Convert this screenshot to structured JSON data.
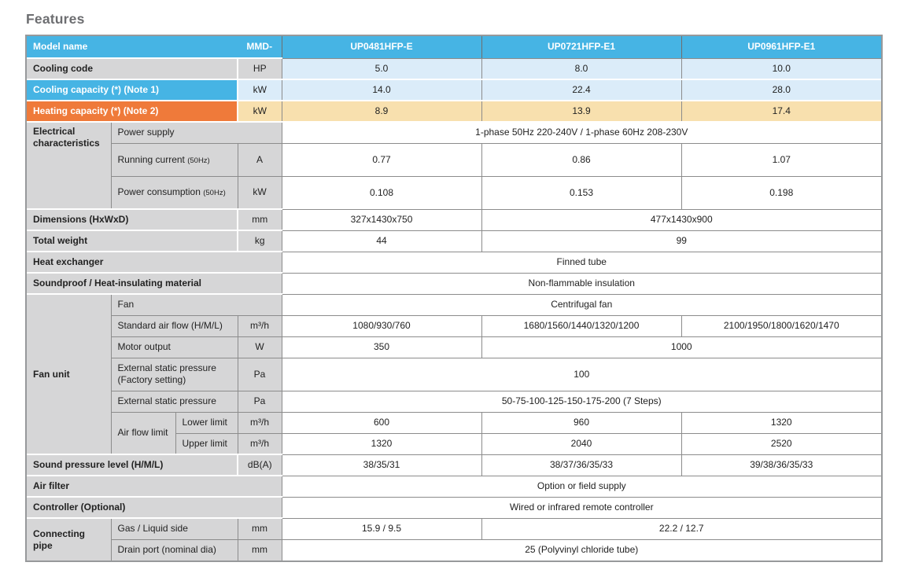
{
  "title": "Features",
  "colors": {
    "header-blue": "#46b4e4",
    "light-blue": "#dbecf9",
    "orange": "#ef7a3a",
    "light-tan": "#f8e0ae",
    "label-gray": "#d6d6d7",
    "line": "#8c8c8c",
    "dark-line": "#6e6e6e",
    "outer": "#97999b",
    "text": "#222222",
    "title-gray": "#6d6e71"
  },
  "table": {
    "rows": [
      {
        "hdr": true,
        "cells": [
          {
            "text": "Model name",
            "colspan": 3,
            "cls": "c-hdr left noR wB",
            "name": "header-model-name"
          },
          {
            "text": "MMD-",
            "cls": "c-hdr wB",
            "name": "header-mmd-prefix"
          },
          {
            "text": "UP0481HFP-E",
            "cls": "c-hdr",
            "name": "header-model-1"
          },
          {
            "text": "UP0721HFP-E1",
            "cls": "c-hdr",
            "name": "header-model-2"
          },
          {
            "text": "UP0961HFP-E1",
            "cls": "c-hdr",
            "name": "header-model-3"
          }
        ]
      },
      {
        "cells": [
          {
            "text": "Cooling code",
            "colspan": 3,
            "cls": "c-lbl wR",
            "name": "row-label-cooling-code"
          },
          {
            "text": "HP",
            "cls": "c-unit",
            "name": "unit-cell"
          },
          {
            "text": "5.0",
            "cls": "c-valb",
            "name": "value-cell"
          },
          {
            "text": "8.0",
            "cls": "c-valb",
            "name": "value-cell"
          },
          {
            "text": "10.0",
            "cls": "c-valb",
            "name": "value-cell"
          }
        ]
      },
      {
        "cells": [
          {
            "text": "Cooling capacity (*) (Note 1)",
            "colspan": 3,
            "cls": "c-capb wR",
            "name": "row-label-cooling-capacity"
          },
          {
            "text": "kW",
            "cls": "c-unitb",
            "name": "unit-cell"
          },
          {
            "text": "14.0",
            "cls": "c-valb",
            "name": "value-cell"
          },
          {
            "text": "22.4",
            "cls": "c-valb",
            "name": "value-cell"
          },
          {
            "text": "28.0",
            "cls": "c-valb",
            "name": "value-cell"
          }
        ]
      },
      {
        "cells": [
          {
            "text": "Heating capacity (*) (Note 2)",
            "colspan": 3,
            "cls": "c-capo wR",
            "name": "row-label-heating-capacity"
          },
          {
            "text": "kW",
            "cls": "c-unitt",
            "name": "unit-cell"
          },
          {
            "text": "8.9",
            "cls": "c-valt",
            "name": "value-cell"
          },
          {
            "text": "13.9",
            "cls": "c-valt",
            "name": "value-cell"
          },
          {
            "text": "17.4",
            "cls": "c-valt",
            "name": "value-cell"
          }
        ]
      },
      {
        "cells": [
          {
            "text": "Electrical characteristics",
            "rowspan": 3,
            "cls": "c-lbl vtop",
            "name": "row-label-electrical-characteristics"
          },
          {
            "text": "Power supply",
            "colspan": 3,
            "cls": "c-lblr gB",
            "name": "row-label-power-supply"
          },
          {
            "text": "1-phase 50Hz 220-240V / 1-phase 60Hz 208-230V",
            "colspan": 3,
            "cls": "c-val",
            "name": "value-cell"
          }
        ]
      },
      {
        "tall": true,
        "cells": [
          {
            "parts": [
              {
                "t": "Running current "
              },
              {
                "t": "(50Hz)",
                "s": "sm"
              }
            ],
            "colspan": 2,
            "cls": "c-lblr gB",
            "name": "row-label-running-current"
          },
          {
            "text": "A",
            "cls": "c-unit gB",
            "name": "unit-cell"
          },
          {
            "text": "0.77",
            "cls": "c-val",
            "name": "value-cell"
          },
          {
            "text": "0.86",
            "cls": "c-val",
            "name": "value-cell"
          },
          {
            "text": "1.07",
            "cls": "c-val",
            "name": "value-cell"
          }
        ]
      },
      {
        "tall": true,
        "cells": [
          {
            "parts": [
              {
                "t": "Power consumption "
              },
              {
                "t": "(50Hz)",
                "s": "sm"
              }
            ],
            "colspan": 2,
            "cls": "c-lblr",
            "name": "row-label-power-consumption"
          },
          {
            "text": "kW",
            "cls": "c-unit",
            "name": "unit-cell"
          },
          {
            "text": "0.108",
            "cls": "c-val",
            "name": "value-cell"
          },
          {
            "text": "0.153",
            "cls": "c-val",
            "name": "value-cell"
          },
          {
            "text": "0.198",
            "cls": "c-val",
            "name": "value-cell"
          }
        ]
      },
      {
        "cells": [
          {
            "parts": [
              {
                "t": "Dimensions",
                "s": "b"
              },
              {
                "t": " (HxWxD)"
              }
            ],
            "colspan": 3,
            "cls": "c-lbl wR",
            "name": "row-label-dimensions"
          },
          {
            "text": "mm",
            "cls": "c-unit",
            "name": "unit-cell"
          },
          {
            "text": "327x1430x750",
            "cls": "c-val",
            "name": "value-cell"
          },
          {
            "text": "477x1430x900",
            "colspan": 2,
            "cls": "c-val",
            "name": "value-cell"
          }
        ]
      },
      {
        "cells": [
          {
            "text": "Total weight",
            "colspan": 3,
            "cls": "c-lbl wR",
            "name": "row-label-total-weight"
          },
          {
            "text": "kg",
            "cls": "c-unit",
            "name": "unit-cell"
          },
          {
            "text": "44",
            "cls": "c-val",
            "name": "value-cell"
          },
          {
            "text": "99",
            "colspan": 2,
            "cls": "c-val",
            "name": "value-cell"
          }
        ]
      },
      {
        "cells": [
          {
            "text": "Heat exchanger",
            "colspan": 4,
            "cls": "c-lbl",
            "name": "row-label-heat-exchanger"
          },
          {
            "text": "Finned tube",
            "colspan": 3,
            "cls": "c-val",
            "name": "value-cell"
          }
        ]
      },
      {
        "cells": [
          {
            "text": "Soundproof / Heat-insulating material",
            "colspan": 4,
            "cls": "c-lbl",
            "name": "row-label-soundproof"
          },
          {
            "text": "Non-flammable insulation",
            "colspan": 3,
            "cls": "c-val",
            "name": "value-cell"
          }
        ]
      },
      {
        "cells": [
          {
            "text": "Fan unit",
            "rowspan": 7,
            "cls": "c-lbl",
            "name": "row-label-fan-unit"
          },
          {
            "text": "Fan",
            "colspan": 3,
            "cls": "c-lblr gB",
            "name": "row-label-fan"
          },
          {
            "text": "Centrifugal fan",
            "colspan": 3,
            "cls": "c-val",
            "name": "value-cell"
          }
        ]
      },
      {
        "cells": [
          {
            "text": "Standard air flow (H/M/L)",
            "colspan": 2,
            "cls": "c-lblr gB",
            "name": "row-label-standard-air-flow"
          },
          {
            "text": "m³/h",
            "cls": "c-unit gB",
            "name": "unit-cell"
          },
          {
            "text": "1080/930/760",
            "cls": "c-val",
            "name": "value-cell"
          },
          {
            "text": "1680/1560/1440/1320/1200",
            "cls": "c-val",
            "name": "value-cell"
          },
          {
            "text": "2100/1950/1800/1620/1470",
            "cls": "c-val",
            "name": "value-cell"
          }
        ]
      },
      {
        "cells": [
          {
            "text": "Motor output",
            "colspan": 2,
            "cls": "c-lblr gB",
            "name": "row-label-motor-output"
          },
          {
            "text": "W",
            "cls": "c-unit gB",
            "name": "unit-cell"
          },
          {
            "text": "350",
            "cls": "c-val",
            "name": "value-cell"
          },
          {
            "text": "1000",
            "colspan": 2,
            "cls": "c-val",
            "name": "value-cell"
          }
        ]
      },
      {
        "tall": true,
        "cells": [
          {
            "text": "External static pressure (Factory setting)",
            "colspan": 2,
            "cls": "c-lblr gB",
            "name": "row-label-external-static-pressure-factory"
          },
          {
            "text": "Pa",
            "cls": "c-unit gB",
            "name": "unit-cell"
          },
          {
            "text": "100",
            "colspan": 3,
            "cls": "c-val",
            "name": "value-cell"
          }
        ]
      },
      {
        "cells": [
          {
            "text": "External static pressure",
            "colspan": 2,
            "cls": "c-lblr gB",
            "name": "row-label-external-static-pressure"
          },
          {
            "text": "Pa",
            "cls": "c-unit gB",
            "name": "unit-cell"
          },
          {
            "text": "50-75-100-125-150-175-200 (7 Steps)",
            "colspan": 3,
            "cls": "c-val",
            "name": "value-cell"
          }
        ]
      },
      {
        "cells": [
          {
            "text": "Air flow limit",
            "rowspan": 2,
            "cls": "c-lblr",
            "name": "row-label-air-flow-limit"
          },
          {
            "text": "Lower limit",
            "cls": "c-lblr gB",
            "name": "row-label-lower-limit"
          },
          {
            "text": "m³/h",
            "cls": "c-unit gB",
            "name": "unit-cell"
          },
          {
            "text": "600",
            "cls": "c-val",
            "name": "value-cell"
          },
          {
            "text": "960",
            "cls": "c-val",
            "name": "value-cell"
          },
          {
            "text": "1320",
            "cls": "c-val",
            "name": "value-cell"
          }
        ]
      },
      {
        "cells": [
          {
            "text": "Upper limit",
            "cls": "c-lblr",
            "name": "row-label-upper-limit"
          },
          {
            "text": "m³/h",
            "cls": "c-unit",
            "name": "unit-cell"
          },
          {
            "text": "1320",
            "cls": "c-val",
            "name": "value-cell"
          },
          {
            "text": "2040",
            "cls": "c-val",
            "name": "value-cell"
          },
          {
            "text": "2520",
            "cls": "c-val",
            "name": "value-cell"
          }
        ]
      },
      {
        "cells": [
          {
            "parts": [
              {
                "t": "Sound pressure level",
                "s": "b"
              },
              {
                "t": " (H/M/L)"
              }
            ],
            "colspan": 3,
            "cls": "c-lbl wR",
            "name": "row-label-sound-pressure-level"
          },
          {
            "text": "dB(A)",
            "cls": "c-unit",
            "name": "unit-cell"
          },
          {
            "text": "38/35/31",
            "cls": "c-val",
            "name": "value-cell"
          },
          {
            "text": "38/37/36/35/33",
            "cls": "c-val",
            "name": "value-cell"
          },
          {
            "text": "39/38/36/35/33",
            "cls": "c-val",
            "name": "value-cell"
          }
        ]
      },
      {
        "cells": [
          {
            "text": "Air filter",
            "colspan": 4,
            "cls": "c-lbl",
            "name": "row-label-air-filter"
          },
          {
            "text": "Option or field supply",
            "colspan": 3,
            "cls": "c-val",
            "name": "value-cell"
          }
        ]
      },
      {
        "cells": [
          {
            "parts": [
              {
                "t": "Controller",
                "s": "b"
              },
              {
                "t": " (Optional)"
              }
            ],
            "colspan": 4,
            "cls": "c-lbl",
            "name": "row-label-controller"
          },
          {
            "text": "Wired or infrared remote controller",
            "colspan": 3,
            "cls": "c-val",
            "name": "value-cell"
          }
        ]
      },
      {
        "cells": [
          {
            "text": "Connecting pipe",
            "rowspan": 2,
            "cls": "c-lbl edgeB",
            "name": "row-label-connecting-pipe"
          },
          {
            "text": "Gas / Liquid side",
            "colspan": 2,
            "cls": "c-lblr gB",
            "name": "row-label-gas-liquid-side"
          },
          {
            "text": "mm",
            "cls": "c-unit gB",
            "name": "unit-cell"
          },
          {
            "text": "15.9 / 9.5",
            "cls": "c-val",
            "name": "value-cell"
          },
          {
            "text": "22.2 / 12.7",
            "colspan": 2,
            "cls": "c-val",
            "name": "value-cell"
          }
        ]
      },
      {
        "cells": [
          {
            "text": "Drain port (nominal dia)",
            "colspan": 2,
            "cls": "c-lblr",
            "name": "row-label-drain-port"
          },
          {
            "text": "mm",
            "cls": "c-unit",
            "name": "unit-cell"
          },
          {
            "text": "25 (Polyvinyl chloride tube)",
            "colspan": 3,
            "cls": "c-val",
            "name": "value-cell"
          }
        ]
      }
    ]
  }
}
